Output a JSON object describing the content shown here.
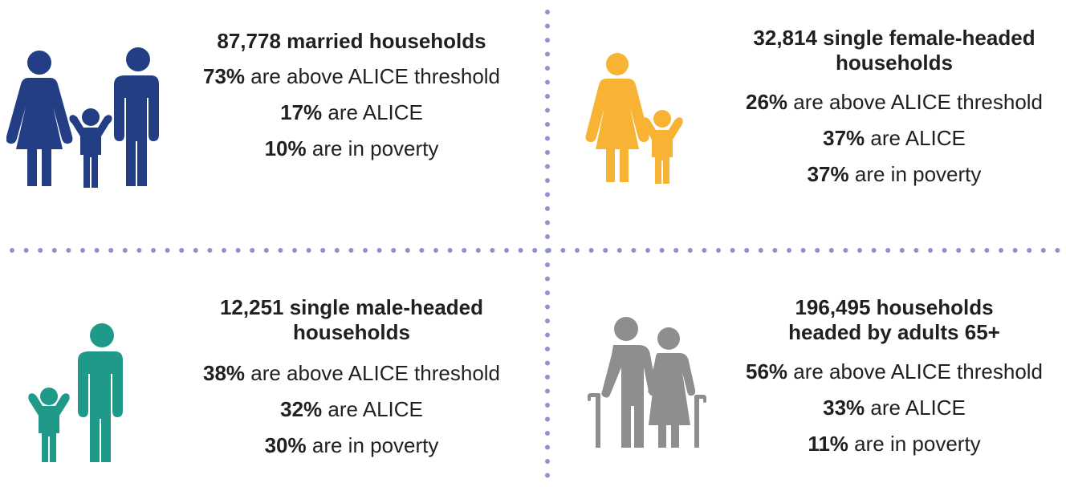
{
  "colors": {
    "married": "#243e86",
    "female": "#f8b334",
    "male": "#1f9a8a",
    "seniors": "#8e8e90",
    "divider": "#8d93cc"
  },
  "panels": [
    {
      "key": "married",
      "icon": "family-icon",
      "title": "87,778 married households",
      "stats": [
        {
          "pct": "73%",
          "text": " are above ALICE threshold"
        },
        {
          "pct": "17%",
          "text": " are ALICE"
        },
        {
          "pct": "10%",
          "text": " are in poverty"
        }
      ]
    },
    {
      "key": "female",
      "icon": "mother-child-icon",
      "title": "32,814 single female-headed households",
      "stats": [
        {
          "pct": "26%",
          "text": " are above ALICE threshold"
        },
        {
          "pct": "37%",
          "text": " are ALICE"
        },
        {
          "pct": "37%",
          "text": " are in poverty"
        }
      ]
    },
    {
      "key": "male",
      "icon": "father-child-icon",
      "title": "12,251 single male-headed households",
      "stats": [
        {
          "pct": "38%",
          "text": " are above ALICE threshold"
        },
        {
          "pct": "32%",
          "text": " are ALICE"
        },
        {
          "pct": "30%",
          "text": " are in poverty"
        }
      ]
    },
    {
      "key": "seniors",
      "icon": "elderly-couple-icon",
      "title": "196,495 households headed by adults 65+",
      "stats": [
        {
          "pct": "56%",
          "text": " are above ALICE threshold"
        },
        {
          "pct": "33%",
          "text": " are ALICE"
        },
        {
          "pct": "11%",
          "text": " are in poverty"
        }
      ]
    }
  ]
}
